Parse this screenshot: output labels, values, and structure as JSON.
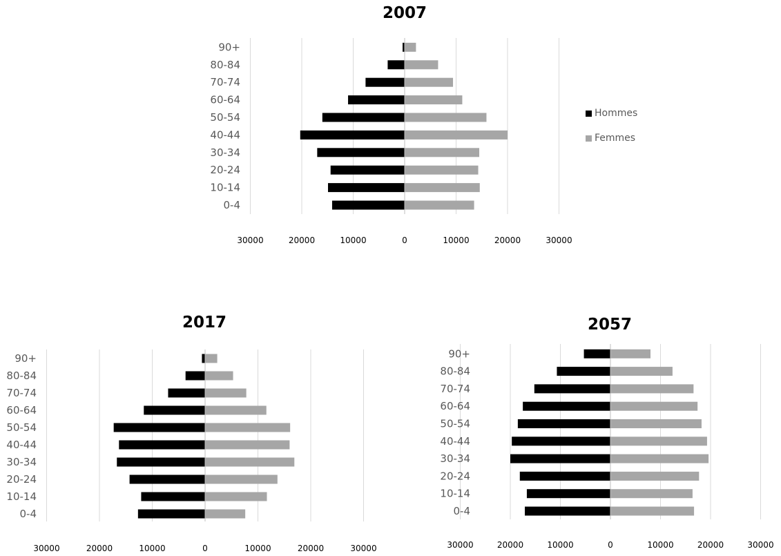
{
  "colors": {
    "hommes": "#000000",
    "femmes": "#a6a6a6",
    "grid": "#d9d9d9",
    "axis": "#bfbfbf",
    "label": "#595959"
  },
  "legend": {
    "hommes": "Hommes",
    "femmes": "Femmes"
  },
  "chart_data": [
    {
      "type": "bar",
      "title": "2007",
      "categories": [
        "0-4",
        "10-14",
        "20-24",
        "30-34",
        "40-44",
        "50-54",
        "60-64",
        "70-74",
        "80-84",
        "90+"
      ],
      "xticks": [
        "30000",
        "20000",
        "10000",
        "0",
        "10000",
        "20000",
        "30000"
      ],
      "xlim": [
        -30000,
        30000
      ],
      "legend_position": "right",
      "series": [
        {
          "name": "Hommes",
          "values": [
            14100,
            14900,
            14400,
            17000,
            20300,
            16000,
            11000,
            7600,
            3300,
            400
          ]
        },
        {
          "name": "Femmes",
          "values": [
            13500,
            14600,
            14300,
            14500,
            20000,
            15900,
            11200,
            9400,
            6500,
            2200
          ]
        }
      ]
    },
    {
      "type": "bar",
      "title": "2017",
      "categories": [
        "0-4",
        "10-14",
        "20-24",
        "30-34",
        "40-44",
        "50-54",
        "60-64",
        "70-74",
        "80-84",
        "90+"
      ],
      "xticks": [
        "30000",
        "20000",
        "10000",
        "0",
        "10000",
        "20000",
        "30000"
      ],
      "xlim": [
        -30000,
        30000
      ],
      "series": [
        {
          "name": "Hommes",
          "values": [
            12700,
            12100,
            14300,
            16700,
            16300,
            17300,
            11600,
            7000,
            3700,
            600
          ]
        },
        {
          "name": "Femmes",
          "values": [
            7600,
            11700,
            13700,
            16900,
            16000,
            16100,
            11600,
            7800,
            5300,
            2300
          ]
        }
      ]
    },
    {
      "type": "bar",
      "title": "2057",
      "categories": [
        "0-4",
        "10-14",
        "20-24",
        "30-34",
        "40-44",
        "50-54",
        "60-64",
        "70-74",
        "80-84",
        "90+"
      ],
      "xticks": [
        "30000",
        "20000",
        "10000",
        "0",
        "10000",
        "20000",
        "30000"
      ],
      "xlim": [
        -30000,
        30000
      ],
      "series": [
        {
          "name": "Hommes",
          "values": [
            17100,
            16700,
            18100,
            20000,
            19700,
            18500,
            17500,
            15200,
            10700,
            5300
          ]
        },
        {
          "name": "Femmes",
          "values": [
            16700,
            16400,
            17700,
            19600,
            19300,
            18200,
            17400,
            16600,
            12400,
            8000
          ]
        }
      ]
    }
  ]
}
